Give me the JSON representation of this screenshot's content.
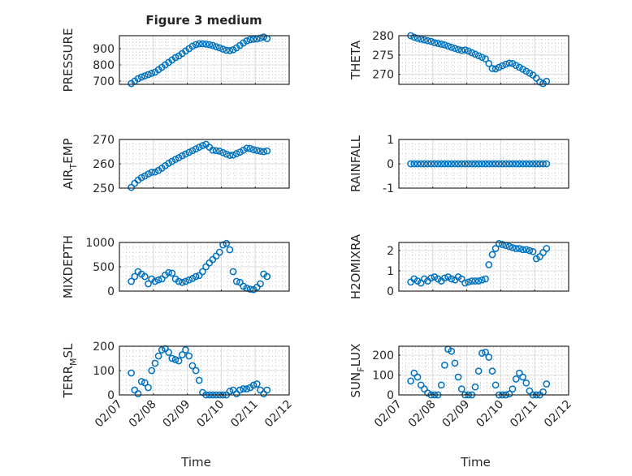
{
  "figure_title": "Figure 3 medium",
  "marker_color": "#0072BD",
  "chart_data": {
    "type": "scatter",
    "xlabel": "Time",
    "xticks": [
      "02/07",
      "02/08",
      "02/09",
      "02/10",
      "02/11",
      "02/12"
    ],
    "xlim_days_from_0207": [
      0,
      5
    ],
    "time_days_from_0207": [
      0.35,
      0.45,
      0.55,
      0.65,
      0.75,
      0.85,
      0.95,
      1.05,
      1.15,
      1.25,
      1.35,
      1.45,
      1.55,
      1.65,
      1.75,
      1.85,
      1.95,
      2.05,
      2.15,
      2.25,
      2.35,
      2.45,
      2.55,
      2.65,
      2.75,
      2.85,
      2.95,
      3.05,
      3.15,
      3.25,
      3.35,
      3.45,
      3.55,
      3.65,
      3.75,
      3.85,
      3.95,
      4.05,
      4.15,
      4.25,
      4.35
    ],
    "panels": [
      {
        "name": "pressure",
        "ylabel": {
          "main": "PRESSURE",
          "sub": "",
          "rest": ""
        },
        "ylim": [
          680,
          980
        ],
        "yticks": [
          "700",
          "800",
          "900"
        ],
        "ytick_values": [
          700,
          800,
          900
        ],
        "values": [
          685,
          700,
          715,
          725,
          732,
          740,
          748,
          755,
          770,
          785,
          800,
          815,
          830,
          845,
          855,
          870,
          885,
          900,
          915,
          925,
          930,
          930,
          928,
          925,
          920,
          912,
          905,
          897,
          890,
          888,
          893,
          905,
          920,
          935,
          948,
          955,
          958,
          960,
          965,
          972,
          962
        ]
      },
      {
        "name": "theta",
        "ylabel": {
          "main": "THETA",
          "sub": "",
          "rest": ""
        },
        "ylim": [
          267.4,
          280
        ],
        "yticks": [
          "270",
          "275",
          "280"
        ],
        "ytick_values": [
          270,
          275,
          280
        ],
        "values": [
          280,
          279.6,
          279.3,
          279.1,
          278.9,
          278.7,
          278.5,
          278.2,
          278,
          277.8,
          277.6,
          277.3,
          277,
          276.7,
          276.4,
          276.2,
          276.3,
          276,
          275.6,
          275.2,
          274.8,
          274.4,
          274,
          272.8,
          271.5,
          271.4,
          271.8,
          272.2,
          272.6,
          272.9,
          272.8,
          272.3,
          271.8,
          271.3,
          270.8,
          270.3,
          269.8,
          269,
          268,
          267.6,
          268.2
        ]
      },
      {
        "name": "air-temp",
        "ylabel": {
          "main": "AIR",
          "sub": "T",
          "rest": "EMP"
        },
        "ylim": [
          250,
          270
        ],
        "yticks": [
          "250",
          "260",
          "270"
        ],
        "ytick_values": [
          250,
          260,
          270
        ],
        "values": [
          250.3,
          252,
          253.3,
          254.3,
          255,
          255.8,
          256.5,
          256.6,
          257.3,
          258.2,
          259.2,
          260.2,
          261,
          261.8,
          262.5,
          263.3,
          264,
          264.7,
          265.4,
          266.1,
          266.8,
          267.5,
          268,
          266.8,
          265.6,
          265.4,
          265.2,
          264.6,
          264,
          263.5,
          263.6,
          264.2,
          264.8,
          265.6,
          266.4,
          266.3,
          265.8,
          265.5,
          265.2,
          265,
          265.3
        ]
      },
      {
        "name": "rainfall",
        "ylabel": {
          "main": "RAINFALL",
          "sub": "",
          "rest": ""
        },
        "ylim": [
          -1,
          1
        ],
        "yticks": [
          "-1",
          "0",
          "1"
        ],
        "ytick_values": [
          -1,
          0,
          1
        ],
        "values": [
          0,
          0,
          0,
          0,
          0,
          0,
          0,
          0,
          0,
          0,
          0,
          0,
          0,
          0,
          0,
          0,
          0,
          0,
          0,
          0,
          0,
          0,
          0,
          0,
          0,
          0,
          0,
          0,
          0,
          0,
          0,
          0,
          0,
          0,
          0,
          0,
          0,
          0,
          0,
          0,
          0
        ]
      },
      {
        "name": "mixdepth",
        "ylabel": {
          "main": "MIXDEPTH",
          "sub": "",
          "rest": ""
        },
        "ylim": [
          0,
          1000
        ],
        "yticks": [
          "0",
          "500",
          "1000"
        ],
        "ytick_values": [
          0,
          500,
          1000
        ],
        "values": [
          200,
          300,
          400,
          350,
          300,
          150,
          250,
          200,
          230,
          250,
          330,
          380,
          370,
          250,
          200,
          180,
          200,
          230,
          260,
          300,
          320,
          400,
          500,
          580,
          650,
          720,
          800,
          950,
          980,
          850,
          400,
          200,
          180,
          100,
          60,
          40,
          30,
          80,
          150,
          350,
          300
        ]
      },
      {
        "name": "h2omixra",
        "ylabel": {
          "main": "H2OMIXRA",
          "sub": "",
          "rest": ""
        },
        "ylim": [
          0,
          2.4
        ],
        "yticks": [
          "0",
          "1",
          "2"
        ],
        "ytick_values": [
          0,
          1,
          2
        ],
        "values": [
          0.45,
          0.6,
          0.5,
          0.4,
          0.6,
          0.5,
          0.65,
          0.7,
          0.6,
          0.5,
          0.65,
          0.7,
          0.6,
          0.55,
          0.7,
          0.6,
          0.4,
          0.45,
          0.5,
          0.5,
          0.5,
          0.55,
          0.6,
          1.3,
          1.8,
          2.1,
          2.35,
          2.3,
          2.25,
          2.2,
          2.15,
          2.1,
          2.1,
          2.05,
          2.05,
          2.0,
          1.95,
          1.6,
          1.7,
          1.9,
          2.1
        ]
      },
      {
        "name": "terr-msl",
        "ylabel": {
          "main": "TERR",
          "sub": "M",
          "rest": "SL"
        },
        "ylim": [
          0,
          200
        ],
        "yticks": [
          "0",
          "100",
          "200"
        ],
        "ytick_values": [
          0,
          100,
          200
        ],
        "values": [
          90,
          20,
          5,
          55,
          50,
          30,
          100,
          130,
          160,
          185,
          190,
          175,
          150,
          145,
          140,
          165,
          185,
          160,
          120,
          100,
          60,
          10,
          0,
          0,
          0,
          0,
          0,
          0,
          0,
          15,
          20,
          5,
          20,
          25,
          25,
          30,
          40,
          45,
          20,
          5,
          20
        ]
      },
      {
        "name": "sun-flux",
        "ylabel": {
          "main": "SUN",
          "sub": "F",
          "rest": "LUX"
        },
        "ylim": [
          0,
          245
        ],
        "yticks": [
          "0",
          "100",
          "200"
        ],
        "ytick_values": [
          0,
          100,
          200
        ],
        "values": [
          70,
          110,
          90,
          50,
          30,
          10,
          0,
          0,
          0,
          50,
          150,
          230,
          220,
          160,
          90,
          30,
          0,
          0,
          0,
          40,
          120,
          210,
          215,
          190,
          120,
          50,
          0,
          0,
          0,
          5,
          30,
          80,
          110,
          90,
          60,
          20,
          0,
          0,
          0,
          15,
          55
        ]
      }
    ]
  }
}
